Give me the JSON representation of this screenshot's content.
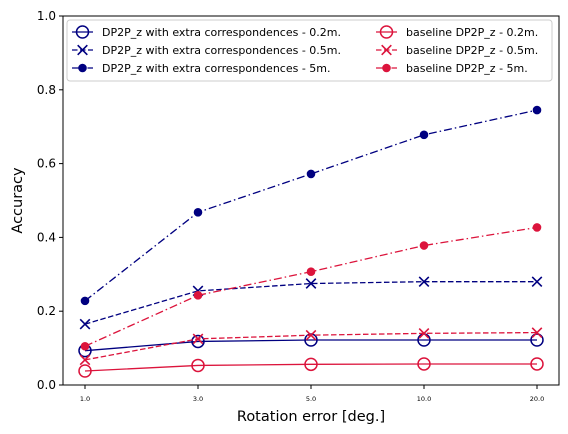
{
  "chart_data": {
    "type": "line",
    "categories": [
      "1.0",
      "3.0",
      "5.0",
      "10.0",
      "20.0"
    ],
    "xlabel": "Rotation error [deg.]",
    "ylabel": "Accuracy",
    "ylim": [
      0,
      1.0
    ],
    "yticks": [
      "0.0",
      "0.2",
      "0.4",
      "0.6",
      "0.8",
      "1.0"
    ],
    "grid": false,
    "legend_position": "top",
    "legend_columns": 2,
    "series": [
      {
        "name": "DP2P_z with extra correspondences - 0.2m.",
        "color": "#000080",
        "linestyle": "solid",
        "marker": "open-circle",
        "values": [
          0.093,
          0.118,
          0.122,
          0.122,
          0.122
        ]
      },
      {
        "name": "DP2P_z with extra correspondences - 0.5m.",
        "color": "#000080",
        "linestyle": "dashed",
        "marker": "x",
        "values": [
          0.165,
          0.255,
          0.275,
          0.28,
          0.28
        ]
      },
      {
        "name": "DP2P_z with extra correspondences - 5m.",
        "color": "#000080",
        "linestyle": "dashdot",
        "marker": "filled-circle",
        "values": [
          0.228,
          0.468,
          0.572,
          0.678,
          0.745
        ]
      },
      {
        "name": "baseline DP2P_z - 0.2m.",
        "color": "#dc143c",
        "linestyle": "solid",
        "marker": "open-circle",
        "values": [
          0.038,
          0.053,
          0.056,
          0.057,
          0.057
        ]
      },
      {
        "name": "baseline DP2P_z - 0.5m.",
        "color": "#dc143c",
        "linestyle": "dashed",
        "marker": "x",
        "values": [
          0.068,
          0.125,
          0.135,
          0.14,
          0.142
        ]
      },
      {
        "name": "baseline DP2P_z - 5m.",
        "color": "#dc143c",
        "linestyle": "dashdot",
        "marker": "filled-circle",
        "values": [
          0.105,
          0.243,
          0.307,
          0.378,
          0.427
        ]
      }
    ]
  }
}
